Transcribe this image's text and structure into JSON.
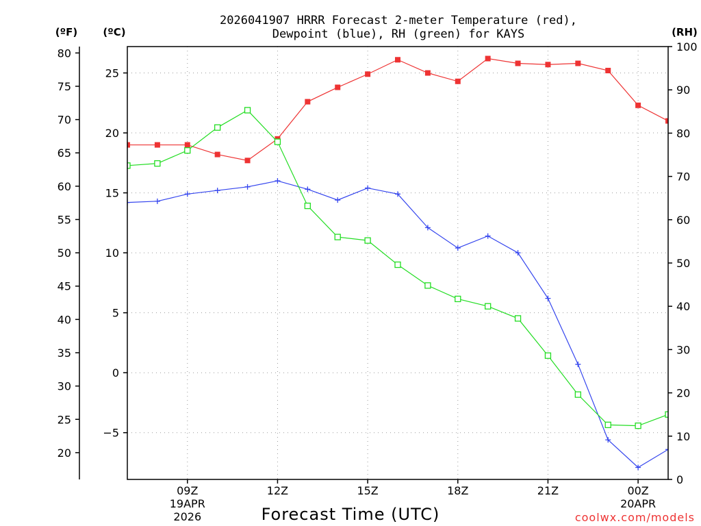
{
  "chart_data": {
    "type": "line",
    "title_line1": "2026041907 HRRR Forecast 2-meter Temperature (red),",
    "title_line2": "Dewpoint (blue), RH (green) for KAYS",
    "xlabel": "Forecast Time (UTC)",
    "credit": "coolwx.com/models",
    "unit_f": "(ºF)",
    "unit_c": "(ºC)",
    "unit_rh": "(RH)",
    "x_hours": [
      7,
      8,
      9,
      10,
      11,
      12,
      13,
      14,
      15,
      16,
      17,
      18,
      19,
      20,
      21,
      22,
      23,
      24,
      25
    ],
    "x_ticks": [
      {
        "hour": 9,
        "label": "09Z",
        "sub1": "19APR",
        "sub2": "2026"
      },
      {
        "hour": 12,
        "label": "12Z",
        "sub1": "",
        "sub2": ""
      },
      {
        "hour": 15,
        "label": "15Z",
        "sub1": "",
        "sub2": ""
      },
      {
        "hour": 18,
        "label": "18Z",
        "sub1": "",
        "sub2": ""
      },
      {
        "hour": 21,
        "label": "21Z",
        "sub1": "",
        "sub2": ""
      },
      {
        "hour": 24,
        "label": "00Z",
        "sub1": "20APR",
        "sub2": ""
      }
    ],
    "xlim": [
      7,
      25
    ],
    "c_lim": [
      -8.9,
      27.2
    ],
    "c_ticks": [
      -5,
      0,
      5,
      10,
      15,
      20,
      25
    ],
    "c_tick_labels": [
      "−5",
      "0",
      "5",
      "10",
      "15",
      "20",
      "25"
    ],
    "f_ticks": [
      20,
      25,
      30,
      35,
      40,
      45,
      50,
      55,
      60,
      65,
      70,
      75,
      80
    ],
    "rh_lim": [
      0,
      100
    ],
    "rh_ticks": [
      0,
      10,
      20,
      30,
      40,
      50,
      60,
      70,
      80,
      90,
      100
    ],
    "series": [
      {
        "name": "Temperature",
        "units": "C",
        "color": "#ee3333",
        "marker": "filled-square",
        "values": [
          19.0,
          19.0,
          19.0,
          18.2,
          17.7,
          19.5,
          22.6,
          23.8,
          24.9,
          26.1,
          25.0,
          24.3,
          26.2,
          25.8,
          25.7,
          25.8,
          25.2,
          22.3,
          21.0
        ]
      },
      {
        "name": "Dewpoint",
        "units": "C",
        "color": "#3344ee",
        "marker": "plus",
        "values": [
          14.2,
          14.3,
          14.9,
          15.2,
          15.5,
          16.0,
          15.3,
          14.4,
          15.4,
          14.9,
          12.1,
          10.4,
          11.4,
          10.0,
          6.2,
          0.7,
          -5.6,
          -7.9,
          -6.4
        ]
      },
      {
        "name": "RH",
        "units": "%",
        "color": "#22dd22",
        "marker": "open-square",
        "values": [
          72.5,
          73.0,
          76.0,
          81.3,
          85.3,
          78.0,
          63.2,
          56.0,
          55.2,
          49.6,
          44.8,
          41.7,
          40.0,
          37.2,
          28.6,
          19.6,
          12.6,
          12.4,
          15.0
        ]
      }
    ]
  }
}
